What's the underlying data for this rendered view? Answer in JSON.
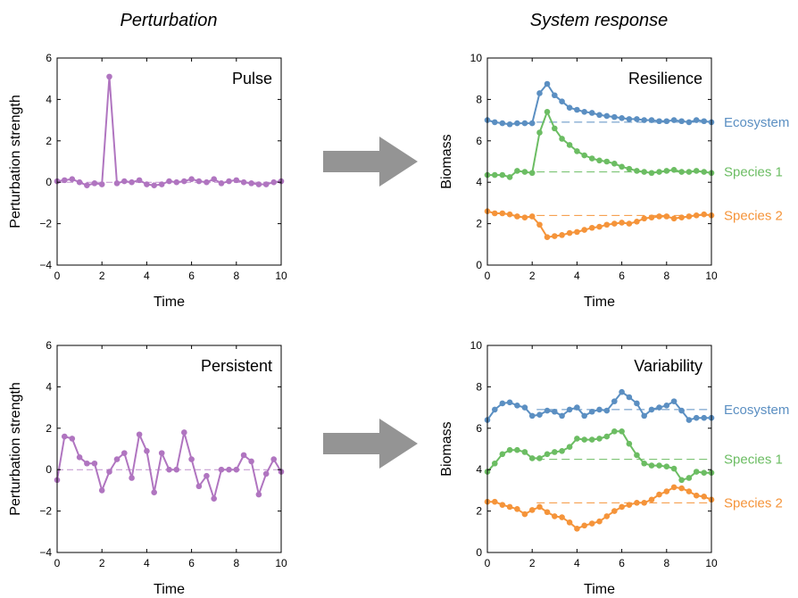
{
  "headers": {
    "left": "Perturbation",
    "right": "System response"
  },
  "colors": {
    "purple": "#b075c0",
    "ecosystem": "#5b8fc2",
    "species1": "#6cbd63",
    "species2": "#f5943a",
    "arrow": "#949494"
  },
  "chart_data": [
    {
      "type": "line",
      "title": "Pulse",
      "xlabel": "Time",
      "ylabel": "Perturbation strength",
      "xlim": [
        0,
        10
      ],
      "ylim": [
        -4,
        6
      ],
      "xticks": [
        "0",
        "2",
        "4",
        "6",
        "8",
        "10"
      ],
      "yticks": [
        "−4",
        "−2",
        "0",
        "2",
        "4",
        "6"
      ],
      "grid": false,
      "reference_lines": [
        {
          "y": 0,
          "color": "#b075c0"
        }
      ],
      "x": [
        0,
        0.33,
        0.67,
        1,
        1.33,
        1.67,
        2,
        2.33,
        2.67,
        3,
        3.33,
        3.67,
        4,
        4.33,
        4.67,
        5,
        5.33,
        5.67,
        6,
        6.33,
        6.67,
        7,
        7.33,
        7.67,
        8,
        8.33,
        8.67,
        9,
        9.33,
        9.67,
        10
      ],
      "series": [
        {
          "color": "#b075c0",
          "values": [
            0.05,
            0.1,
            0.15,
            0.0,
            -0.15,
            -0.05,
            -0.1,
            5.1,
            -0.05,
            0.05,
            0.0,
            0.1,
            -0.1,
            -0.15,
            -0.1,
            0.05,
            0.0,
            0.05,
            0.15,
            0.05,
            0.0,
            0.15,
            -0.05,
            0.05,
            0.1,
            0.0,
            -0.05,
            -0.1,
            -0.1,
            0.0,
            0.05
          ]
        }
      ]
    },
    {
      "type": "line",
      "title": "Resilience",
      "xlabel": "Time",
      "ylabel": "Biomass",
      "xlim": [
        0,
        10
      ],
      "ylim": [
        0,
        10
      ],
      "xticks": [
        "0",
        "2",
        "4",
        "6",
        "8",
        "10"
      ],
      "yticks": [
        "0",
        "2",
        "4",
        "6",
        "8",
        "10"
      ],
      "grid": false,
      "x": [
        0,
        0.33,
        0.67,
        1,
        1.33,
        1.67,
        2,
        2.33,
        2.67,
        3,
        3.33,
        3.67,
        4,
        4.33,
        4.67,
        5,
        5.33,
        5.67,
        6,
        6.33,
        6.67,
        7,
        7.33,
        7.67,
        8,
        8.33,
        8.67,
        9,
        9.33,
        9.67,
        10
      ],
      "series": [
        {
          "name": "Ecosystem",
          "color": "#5b8fc2",
          "baseline": 6.9,
          "values": [
            7.0,
            6.9,
            6.85,
            6.8,
            6.85,
            6.85,
            6.85,
            8.3,
            8.75,
            8.2,
            7.9,
            7.6,
            7.5,
            7.4,
            7.35,
            7.25,
            7.2,
            7.15,
            7.1,
            7.05,
            7.05,
            7.0,
            7.0,
            6.95,
            6.95,
            7.0,
            6.95,
            6.9,
            7.0,
            6.95,
            6.9
          ]
        },
        {
          "name": "Species 1",
          "color": "#6cbd63",
          "baseline": 4.5,
          "values": [
            4.35,
            4.35,
            4.35,
            4.25,
            4.55,
            4.5,
            4.45,
            6.4,
            7.4,
            6.6,
            6.1,
            5.8,
            5.5,
            5.3,
            5.15,
            5.05,
            5.0,
            4.9,
            4.75,
            4.65,
            4.55,
            4.5,
            4.45,
            4.5,
            4.55,
            4.6,
            4.5,
            4.5,
            4.55,
            4.5,
            4.45
          ]
        },
        {
          "name": "Species 2",
          "color": "#f5943a",
          "baseline": 2.4,
          "values": [
            2.6,
            2.5,
            2.5,
            2.45,
            2.35,
            2.3,
            2.35,
            1.95,
            1.35,
            1.4,
            1.45,
            1.55,
            1.6,
            1.7,
            1.8,
            1.85,
            1.95,
            2.0,
            2.05,
            2.0,
            2.1,
            2.25,
            2.3,
            2.35,
            2.35,
            2.25,
            2.3,
            2.35,
            2.4,
            2.45,
            2.4
          ]
        }
      ]
    },
    {
      "type": "line",
      "title": "Persistent",
      "xlabel": "Time",
      "ylabel": "Perturbation strength",
      "xlim": [
        0,
        10
      ],
      "ylim": [
        -4,
        6
      ],
      "xticks": [
        "0",
        "2",
        "4",
        "6",
        "8",
        "10"
      ],
      "yticks": [
        "−4",
        "−2",
        "0",
        "2",
        "4",
        "6"
      ],
      "grid": false,
      "reference_lines": [
        {
          "y": 0,
          "color": "#b075c0"
        }
      ],
      "x": [
        0,
        0.33,
        0.67,
        1,
        1.33,
        1.67,
        2,
        2.33,
        2.67,
        3,
        3.33,
        3.67,
        4,
        4.33,
        4.67,
        5,
        5.33,
        5.67,
        6,
        6.33,
        6.67,
        7,
        7.33,
        7.67,
        8,
        8.33,
        8.67,
        9,
        9.33,
        9.67,
        10
      ],
      "series": [
        {
          "color": "#b075c0",
          "values": [
            -0.5,
            1.6,
            1.5,
            0.6,
            0.3,
            0.3,
            -1.0,
            -0.1,
            0.5,
            0.8,
            -0.4,
            1.7,
            0.9,
            -1.1,
            0.8,
            0.0,
            0.0,
            1.8,
            0.5,
            -0.8,
            -0.3,
            -1.4,
            0.0,
            0.0,
            0.0,
            0.7,
            0.4,
            -1.2,
            -0.2,
            0.5,
            -0.1
          ]
        }
      ]
    },
    {
      "type": "line",
      "title": "Variability",
      "xlabel": "Time",
      "ylabel": "Biomass",
      "xlim": [
        0,
        10
      ],
      "ylim": [
        0,
        10
      ],
      "xticks": [
        "0",
        "2",
        "4",
        "6",
        "8",
        "10"
      ],
      "yticks": [
        "0",
        "2",
        "4",
        "6",
        "8",
        "10"
      ],
      "grid": false,
      "x": [
        0,
        0.33,
        0.67,
        1,
        1.33,
        1.67,
        2,
        2.33,
        2.67,
        3,
        3.33,
        3.67,
        4,
        4.33,
        4.67,
        5,
        5.33,
        5.67,
        6,
        6.33,
        6.67,
        7,
        7.33,
        7.67,
        8,
        8.33,
        8.67,
        9,
        9.33,
        9.67,
        10
      ],
      "series": [
        {
          "name": "Ecosystem",
          "color": "#5b8fc2",
          "baseline": 6.9,
          "values": [
            6.4,
            6.9,
            7.2,
            7.25,
            7.1,
            7.0,
            6.6,
            6.65,
            6.85,
            6.8,
            6.6,
            6.9,
            7.0,
            6.6,
            6.8,
            6.9,
            6.85,
            7.3,
            7.75,
            7.5,
            7.2,
            6.6,
            6.9,
            7.0,
            7.1,
            7.3,
            6.85,
            6.4,
            6.5,
            6.5,
            6.5
          ]
        },
        {
          "name": "Species 1",
          "color": "#6cbd63",
          "baseline": 4.5,
          "values": [
            3.9,
            4.3,
            4.75,
            4.95,
            4.95,
            4.85,
            4.55,
            4.55,
            4.75,
            4.85,
            4.9,
            5.1,
            5.5,
            5.45,
            5.45,
            5.5,
            5.6,
            5.85,
            5.85,
            5.25,
            4.7,
            4.3,
            4.2,
            4.2,
            4.15,
            4.05,
            3.5,
            3.6,
            3.9,
            3.85,
            3.85
          ]
        },
        {
          "name": "Species 2",
          "color": "#f5943a",
          "baseline": 2.4,
          "values": [
            2.45,
            2.45,
            2.3,
            2.2,
            2.1,
            1.85,
            2.05,
            2.2,
            1.95,
            1.75,
            1.7,
            1.45,
            1.15,
            1.3,
            1.4,
            1.5,
            1.75,
            2.0,
            2.2,
            2.3,
            2.4,
            2.4,
            2.55,
            2.8,
            2.95,
            3.15,
            3.1,
            2.95,
            2.75,
            2.7,
            2.55
          ]
        }
      ]
    }
  ]
}
